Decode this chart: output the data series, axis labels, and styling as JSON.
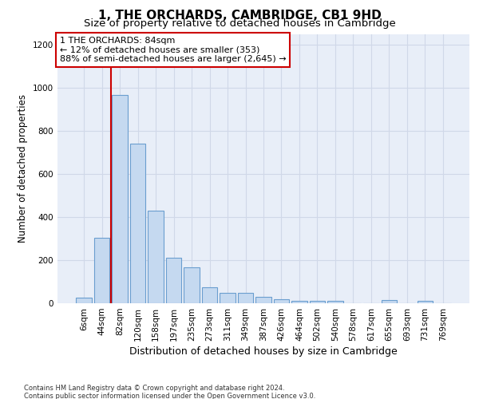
{
  "title": "1, THE ORCHARDS, CAMBRIDGE, CB1 9HD",
  "subtitle": "Size of property relative to detached houses in Cambridge",
  "xlabel": "Distribution of detached houses by size in Cambridge",
  "ylabel": "Number of detached properties",
  "bar_labels": [
    "6sqm",
    "44sqm",
    "82sqm",
    "120sqm",
    "158sqm",
    "197sqm",
    "235sqm",
    "273sqm",
    "311sqm",
    "349sqm",
    "387sqm",
    "426sqm",
    "464sqm",
    "502sqm",
    "540sqm",
    "578sqm",
    "617sqm",
    "655sqm",
    "693sqm",
    "731sqm",
    "769sqm"
  ],
  "bar_values": [
    25,
    305,
    965,
    740,
    430,
    210,
    165,
    75,
    47,
    47,
    30,
    17,
    10,
    10,
    10,
    0,
    0,
    15,
    0,
    10,
    0
  ],
  "bar_color": "#c5d9f0",
  "bar_edge_color": "#6a9ecf",
  "property_bar_index": 2,
  "property_line_color": "#cc0000",
  "annotation_box_text": "1 THE ORCHARDS: 84sqm\n← 12% of detached houses are smaller (353)\n88% of semi-detached houses are larger (2,645) →",
  "annotation_box_edgecolor": "#cc0000",
  "ylim": [
    0,
    1250
  ],
  "yticks": [
    0,
    200,
    400,
    600,
    800,
    1000,
    1200
  ],
  "grid_color": "#d0d8e8",
  "plot_bg_color": "#e8eef8",
  "fig_bg_color": "#ffffff",
  "footnote": "Contains HM Land Registry data © Crown copyright and database right 2024.\nContains public sector information licensed under the Open Government Licence v3.0.",
  "title_fontsize": 11,
  "subtitle_fontsize": 9.5,
  "xlabel_fontsize": 9,
  "ylabel_fontsize": 8.5,
  "annotation_fontsize": 8,
  "tick_fontsize": 7.5
}
